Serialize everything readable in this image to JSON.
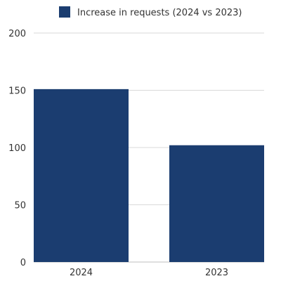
{
  "chart_data": {
    "type": "bar",
    "categories": [
      "2024",
      "2023"
    ],
    "series": [
      {
        "name": "Increase in requests (2024 vs 2023)",
        "values": [
          151,
          102
        ]
      }
    ],
    "ylim": [
      0,
      200
    ],
    "yticks": [
      0,
      50,
      100,
      150,
      200
    ],
    "grid": true,
    "legend_position": "top-center",
    "colors": {
      "bar": "#1b3d70"
    }
  }
}
